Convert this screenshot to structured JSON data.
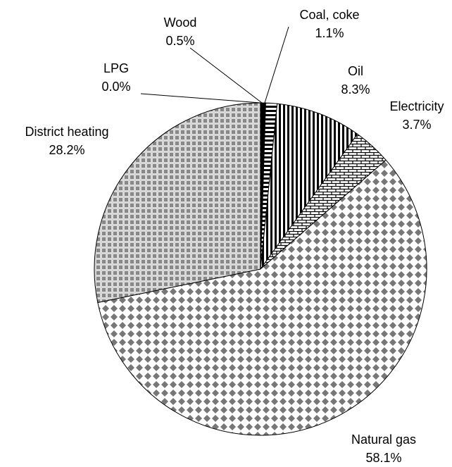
{
  "chart_data": {
    "type": "pie",
    "categories": [
      "Wood",
      "Coal, coke",
      "Oil",
      "Electricity",
      "Natural gas",
      "District heating",
      "LPG"
    ],
    "values": [
      0.5,
      1.1,
      8.3,
      3.7,
      58.1,
      28.2,
      0.0
    ],
    "value_labels": [
      "0.5%",
      "1.1%",
      "8.3%",
      "3.7%",
      "58.1%",
      "28.2%",
      "0.0%"
    ]
  }
}
